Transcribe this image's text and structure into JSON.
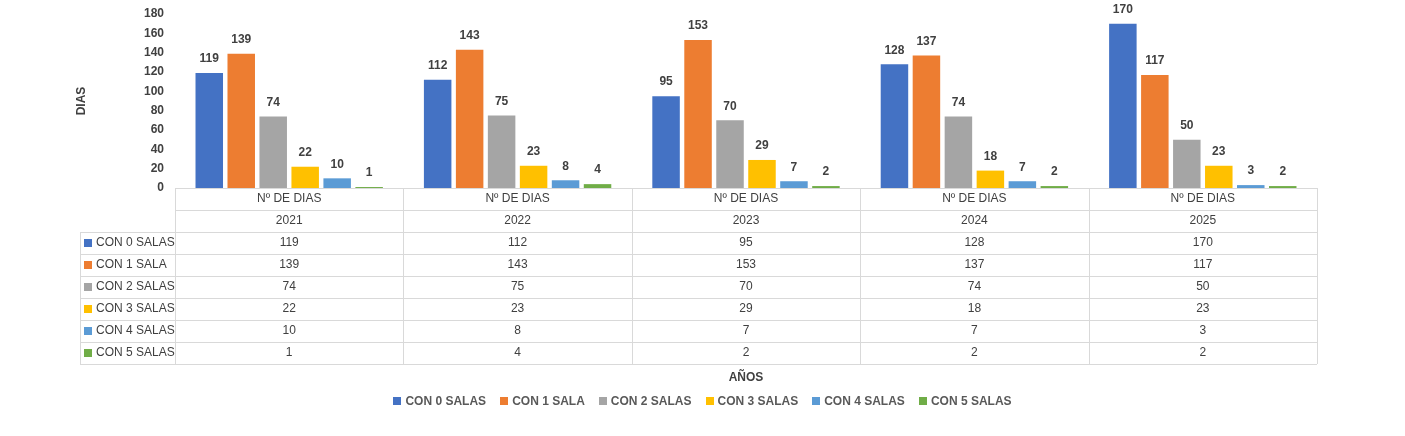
{
  "chart_data": {
    "type": "bar",
    "ylabel": "DIAS",
    "categories": [
      "Nº DE DIAS\n2021",
      "Nº DE DIAS\n2022",
      "Nº DE DIAS\n2023",
      "Nº DE DIAS\n2024",
      "Nº DE DIAS\n2025"
    ],
    "series": [
      {
        "name": "CON 0 SALAS",
        "color": "#4472c4",
        "values": [
          119,
          112,
          95,
          128,
          170
        ]
      },
      {
        "name": "CON 1 SALA",
        "color": "#ed7d31",
        "values": [
          139,
          143,
          153,
          137,
          117
        ]
      },
      {
        "name": "CON 2 SALAS",
        "color": "#a5a5a5",
        "values": [
          74,
          75,
          70,
          74,
          50
        ]
      },
      {
        "name": "CON 3 SALAS",
        "color": "#ffc000",
        "values": [
          22,
          23,
          29,
          18,
          23
        ]
      },
      {
        "name": "CON 4 SALAS",
        "color": "#5b9bd5",
        "values": [
          10,
          8,
          7,
          7,
          3
        ]
      },
      {
        "name": "CON 5 SALAS",
        "color": "#70ad47",
        "values": [
          1,
          4,
          2,
          2,
          2
        ]
      }
    ],
    "annotations": [
      "119",
      "112",
      "95",
      "128",
      "170",
      "139",
      "143",
      "153",
      "137",
      "117",
      "74",
      "75",
      "70",
      "74",
      "50",
      "22",
      "23",
      "29",
      "18",
      "23",
      "10",
      "8",
      "7",
      "7",
      "3",
      "1",
      "4",
      "2",
      "2",
      "2",
      "AÑOS"
    ],
    "ylim": [
      0,
      180
    ],
    "yticks": [
      0,
      20,
      40,
      60,
      80,
      100,
      120,
      140,
      160,
      180
    ],
    "grid": false,
    "legend": "bottom",
    "data_labels": true
  }
}
